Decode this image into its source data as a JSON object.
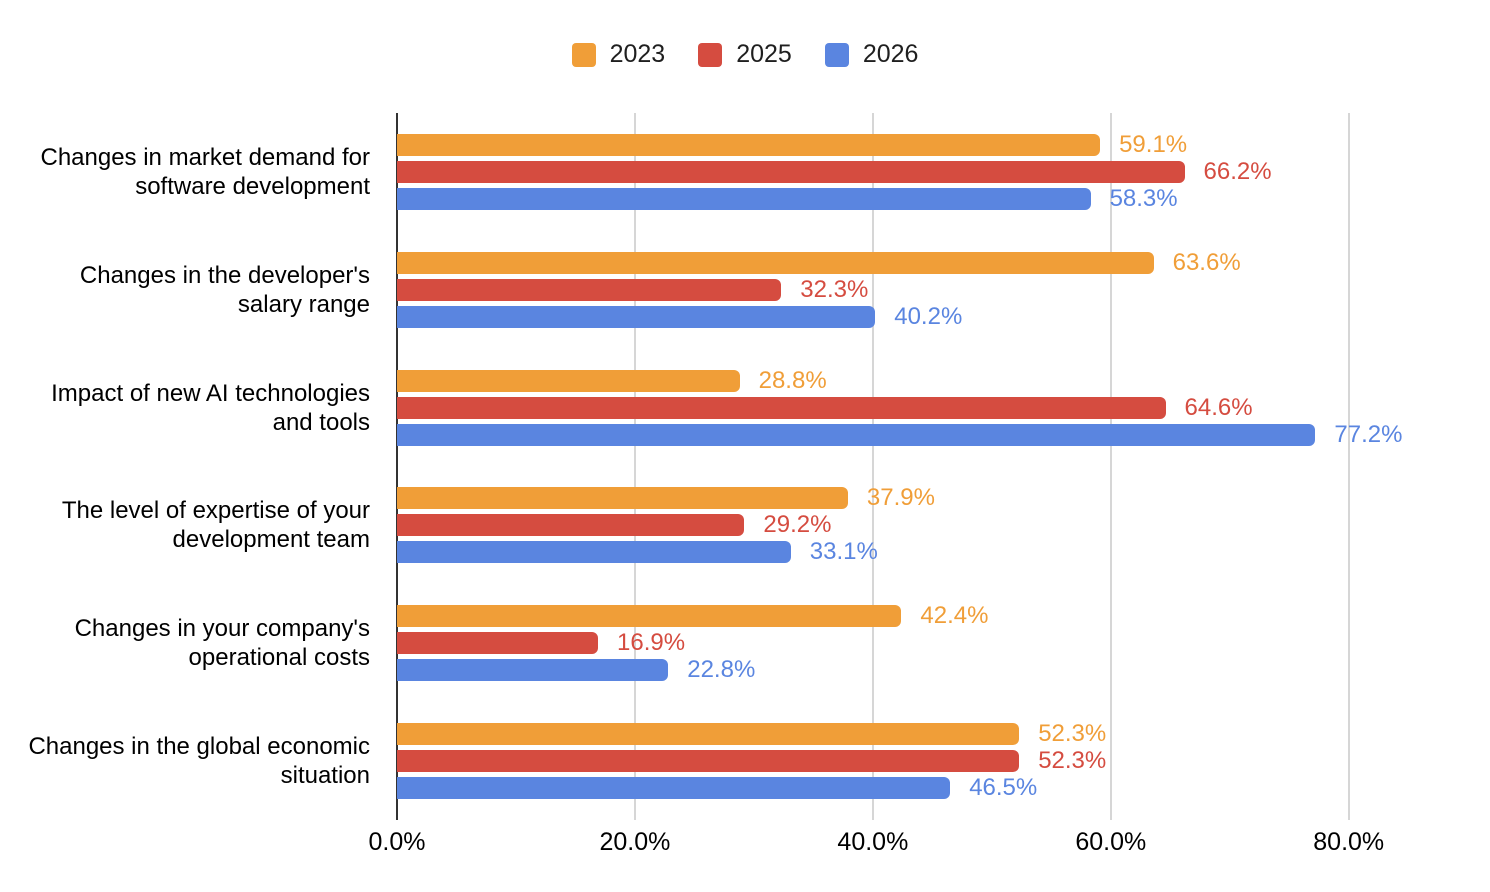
{
  "chart_data": {
    "type": "bar",
    "orientation": "horizontal",
    "title": "",
    "categories": [
      "Changes in market demand for\nsoftware development",
      "Changes in the developer's\nsalary range",
      "Impact of new AI technologies\nand tools",
      "The level of expertise of your\ndevelopment team",
      "Changes in your company's\noperational costs",
      "Changes in the global economic\nsituation"
    ],
    "series": [
      {
        "name": "2023",
        "color": "#F09E38",
        "values": [
          59.1,
          63.6,
          28.8,
          37.9,
          42.4,
          52.3
        ]
      },
      {
        "name": "2025",
        "color": "#D54C40",
        "values": [
          66.2,
          32.3,
          64.6,
          29.2,
          16.9,
          52.3
        ]
      },
      {
        "name": "2026",
        "color": "#5A85E0",
        "values": [
          58.3,
          40.2,
          77.2,
          33.1,
          22.8,
          46.5
        ]
      }
    ],
    "value_suffix": "%",
    "x_axis": {
      "min": 0,
      "max": 87,
      "ticks": [
        {
          "value": 0,
          "label": "0.0%"
        },
        {
          "value": 20,
          "label": "20.0%"
        },
        {
          "value": 40,
          "label": "40.0%"
        },
        {
          "value": 60,
          "label": "60.0%"
        },
        {
          "value": 80,
          "label": "80.0%"
        }
      ]
    },
    "grid": true,
    "legend_position": "top",
    "colors": {
      "axis_line": "#333333",
      "gridline": "#d6d6d6",
      "text": "#000000",
      "legend_text": "#1f1f1f",
      "background": "#ffffff"
    }
  }
}
